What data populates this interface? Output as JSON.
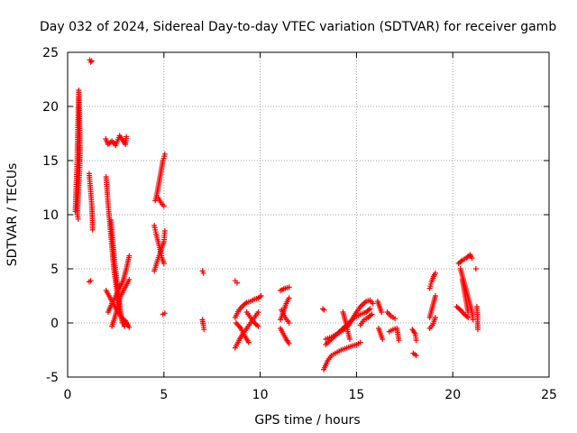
{
  "chart_data": {
    "type": "scatter",
    "title": "Day 032 of 2024, Sidereal Day-to-day VTEC variation (SDTVAR) for receiver gamb",
    "xlabel": "GPS time / hours",
    "ylabel": "SDTVAR / TECUs",
    "xlim": [
      0,
      25
    ],
    "ylim": [
      -5,
      25
    ],
    "xticks": [
      "0",
      "5",
      "10",
      "15",
      "20",
      "25"
    ],
    "yticks": [
      "-5",
      "0",
      "5",
      "10",
      "15",
      "20",
      "25"
    ],
    "grid": true,
    "marker": "+",
    "marker_color": "#ff0000",
    "series": [
      {
        "name": "SDTVAR",
        "segments": [
          [
            [
              0.4,
              10.3
            ],
            [
              0.45,
              12.8
            ],
            [
              0.5,
              15.0
            ],
            [
              0.52,
              17.5
            ],
            [
              0.55,
              19.5
            ],
            [
              0.58,
              21.5
            ],
            [
              0.62,
              18.5
            ],
            [
              0.65,
              16.0
            ],
            [
              0.62,
              14.0
            ],
            [
              0.5,
              10.0
            ],
            [
              0.55,
              9.6
            ]
          ],
          [
            [
              1.15,
              24.3
            ],
            [
              1.2,
              24.1
            ],
            [
              1.25,
              24.2
            ]
          ],
          [
            [
              1.12,
              13.8
            ],
            [
              1.18,
              12.5
            ],
            [
              1.25,
              11.0
            ],
            [
              1.28,
              9.8
            ],
            [
              1.3,
              8.6
            ]
          ],
          [
            [
              1.12,
              3.8
            ],
            [
              1.2,
              3.9
            ]
          ],
          [
            [
              1.98,
              17.0
            ],
            [
              2.1,
              16.5
            ],
            [
              2.3,
              16.8
            ],
            [
              2.5,
              16.4
            ],
            [
              2.7,
              17.3
            ],
            [
              2.85,
              16.9
            ],
            [
              3.0,
              16.5
            ],
            [
              3.05,
              17.2
            ]
          ],
          [
            [
              2.0,
              13.5
            ],
            [
              2.1,
              11.0
            ],
            [
              2.2,
              9.0
            ],
            [
              2.3,
              7.0
            ],
            [
              2.4,
              5.0
            ],
            [
              2.55,
              3.0
            ],
            [
              2.65,
              1.5
            ],
            [
              2.8,
              0.5
            ],
            [
              2.95,
              -0.3
            ]
          ],
          [
            [
              2.25,
              9.5
            ],
            [
              2.35,
              7.5
            ],
            [
              2.45,
              5.5
            ],
            [
              2.55,
              4.0
            ],
            [
              2.65,
              2.5
            ],
            [
              2.75,
              1.0
            ],
            [
              2.85,
              0.0
            ]
          ],
          [
            [
              2.0,
              3.0
            ],
            [
              2.15,
              2.5
            ],
            [
              2.3,
              2.0
            ],
            [
              2.45,
              1.5
            ],
            [
              2.6,
              1.0
            ],
            [
              2.8,
              0.5
            ],
            [
              3.0,
              0.2
            ],
            [
              3.2,
              -0.4
            ]
          ],
          [
            [
              2.1,
              1.0
            ],
            [
              2.3,
              1.8
            ],
            [
              2.5,
              2.5
            ],
            [
              2.7,
              3.2
            ],
            [
              2.9,
              4.0
            ],
            [
              3.05,
              5.0
            ],
            [
              3.2,
              6.2
            ]
          ],
          [
            [
              2.3,
              -0.3
            ],
            [
              2.45,
              0.5
            ],
            [
              2.6,
              1.5
            ],
            [
              2.75,
              2.5
            ],
            [
              2.9,
              3.0
            ],
            [
              3.05,
              3.5
            ],
            [
              3.2,
              4.0
            ]
          ],
          [
            [
              4.5,
              4.8
            ],
            [
              4.62,
              5.5
            ],
            [
              4.75,
              6.2
            ],
            [
              4.9,
              7.0
            ],
            [
              5.0,
              7.5
            ],
            [
              5.05,
              8.5
            ]
          ],
          [
            [
              4.55,
              11.3
            ],
            [
              4.65,
              12.0
            ],
            [
              4.75,
              13.0
            ],
            [
              4.85,
              14.0
            ],
            [
              4.95,
              15.0
            ],
            [
              5.05,
              15.6
            ]
          ],
          [
            [
              4.5,
              9.0
            ],
            [
              4.6,
              8.2
            ],
            [
              4.7,
              7.5
            ],
            [
              4.8,
              6.8
            ],
            [
              4.9,
              6.0
            ],
            [
              5.0,
              5.5
            ]
          ],
          [
            [
              4.7,
              11.6
            ],
            [
              4.85,
              11.1
            ],
            [
              5.0,
              10.8
            ]
          ],
          [
            [
              4.95,
              0.8
            ],
            [
              5.05,
              0.9
            ]
          ],
          [
            [
              7.0,
              4.8
            ],
            [
              7.05,
              4.6
            ]
          ],
          [
            [
              7.0,
              0.3
            ],
            [
              7.05,
              -0.2
            ],
            [
              7.08,
              -0.6
            ]
          ],
          [
            [
              8.7,
              3.9
            ],
            [
              8.8,
              3.7
            ]
          ],
          [
            [
              8.7,
              -2.3
            ],
            [
              8.9,
              -1.6
            ],
            [
              9.1,
              -1.0
            ],
            [
              9.3,
              -0.5
            ],
            [
              9.5,
              0.0
            ],
            [
              9.7,
              0.5
            ],
            [
              9.9,
              1.0
            ]
          ],
          [
            [
              8.7,
              0.5
            ],
            [
              8.9,
              1.2
            ],
            [
              9.1,
              1.6
            ],
            [
              9.3,
              1.9
            ],
            [
              9.5,
              2.0
            ],
            [
              9.7,
              2.2
            ],
            [
              9.9,
              2.3
            ],
            [
              10.05,
              2.5
            ]
          ],
          [
            [
              8.75,
              0.0
            ],
            [
              9.0,
              -0.5
            ],
            [
              9.2,
              -1.2
            ],
            [
              9.4,
              -1.8
            ]
          ],
          [
            [
              9.3,
              1.0
            ],
            [
              9.5,
              0.5
            ],
            [
              9.7,
              0.0
            ],
            [
              9.9,
              -0.3
            ]
          ],
          [
            [
              11.05,
              3.0
            ],
            [
              11.3,
              3.2
            ],
            [
              11.5,
              3.3
            ]
          ],
          [
            [
              11.05,
              0.3
            ],
            [
              11.2,
              1.0
            ],
            [
              11.35,
              1.8
            ],
            [
              11.5,
              2.3
            ]
          ],
          [
            [
              11.05,
              -0.5
            ],
            [
              11.2,
              -1.0
            ],
            [
              11.35,
              -1.5
            ],
            [
              11.5,
              -1.9
            ]
          ],
          [
            [
              11.1,
              1.2
            ],
            [
              11.3,
              0.5
            ],
            [
              11.5,
              0.0
            ]
          ],
          [
            [
              13.25,
              1.3
            ],
            [
              13.32,
              1.2
            ]
          ],
          [
            [
              13.3,
              -4.3
            ],
            [
              13.5,
              -3.5
            ],
            [
              13.7,
              -3.0
            ],
            [
              13.9,
              -2.8
            ],
            [
              14.2,
              -2.5
            ],
            [
              14.5,
              -2.3
            ],
            [
              14.8,
              -2.1
            ],
            [
              15.0,
              -2.0
            ],
            [
              15.2,
              -1.8
            ]
          ],
          [
            [
              13.4,
              -1.5
            ],
            [
              13.7,
              -1.3
            ],
            [
              14.0,
              -1.0
            ],
            [
              14.3,
              -0.7
            ],
            [
              14.6,
              -0.2
            ],
            [
              14.8,
              0.4
            ],
            [
              15.0,
              1.0
            ],
            [
              15.2,
              1.5
            ],
            [
              15.5,
              2.0
            ],
            [
              15.7,
              2.1
            ],
            [
              15.85,
              1.8
            ]
          ],
          [
            [
              13.4,
              -2.0
            ],
            [
              13.7,
              -1.5
            ],
            [
              14.0,
              -1.0
            ],
            [
              14.3,
              -0.5
            ],
            [
              14.6,
              0.0
            ],
            [
              14.9,
              0.5
            ],
            [
              15.2,
              0.8
            ],
            [
              15.5,
              1.0
            ],
            [
              15.7,
              1.3
            ]
          ],
          [
            [
              14.3,
              1.0
            ],
            [
              14.45,
              0.0
            ],
            [
              14.55,
              -0.8
            ],
            [
              14.65,
              -1.5
            ]
          ],
          [
            [
              15.2,
              -0.2
            ],
            [
              15.4,
              0.3
            ],
            [
              15.6,
              0.5
            ],
            [
              15.8,
              0.8
            ]
          ],
          [
            [
              16.1,
              2.0
            ],
            [
              16.2,
              1.5
            ],
            [
              16.3,
              1.0
            ]
          ],
          [
            [
              16.15,
              -0.5
            ],
            [
              16.25,
              -1.0
            ],
            [
              16.35,
              -1.5
            ]
          ],
          [
            [
              16.6,
              1.0
            ],
            [
              16.8,
              0.6
            ],
            [
              17.0,
              0.4
            ]
          ],
          [
            [
              16.7,
              -0.8
            ],
            [
              16.9,
              -0.6
            ],
            [
              17.1,
              -0.5
            ],
            [
              17.2,
              -1.6
            ]
          ],
          [
            [
              17.9,
              -0.6
            ],
            [
              18.05,
              -1.0
            ],
            [
              18.1,
              -1.6
            ]
          ],
          [
            [
              17.95,
              -2.8
            ],
            [
              18.1,
              -3.0
            ]
          ],
          [
            [
              18.8,
              3.2
            ],
            [
              18.9,
              3.8
            ],
            [
              19.0,
              4.3
            ],
            [
              19.1,
              4.6
            ]
          ],
          [
            [
              18.8,
              0.5
            ],
            [
              18.95,
              1.5
            ],
            [
              19.1,
              2.5
            ]
          ],
          [
            [
              18.8,
              -0.5
            ],
            [
              18.95,
              -0.2
            ],
            [
              19.1,
              0.5
            ]
          ],
          [
            [
              20.3,
              5.5
            ],
            [
              20.5,
              5.8
            ],
            [
              20.7,
              6.0
            ],
            [
              20.9,
              6.3
            ],
            [
              21.0,
              6.0
            ]
          ],
          [
            [
              20.4,
              5.0
            ],
            [
              20.55,
              4.0
            ],
            [
              20.7,
              3.0
            ],
            [
              20.85,
              2.0
            ],
            [
              21.0,
              1.0
            ],
            [
              21.05,
              0.3
            ]
          ],
          [
            [
              20.5,
              4.0
            ],
            [
              20.6,
              3.0
            ],
            [
              20.7,
              2.0
            ],
            [
              20.8,
              1.0
            ]
          ],
          [
            [
              20.2,
              1.5
            ],
            [
              20.4,
              1.2
            ],
            [
              20.6,
              0.8
            ],
            [
              20.8,
              0.5
            ]
          ],
          [
            [
              21.2,
              5.0
            ]
          ],
          [
            [
              21.25,
              1.5
            ],
            [
              21.28,
              0.8
            ],
            [
              21.3,
              -0.6
            ]
          ]
        ]
      }
    ]
  }
}
